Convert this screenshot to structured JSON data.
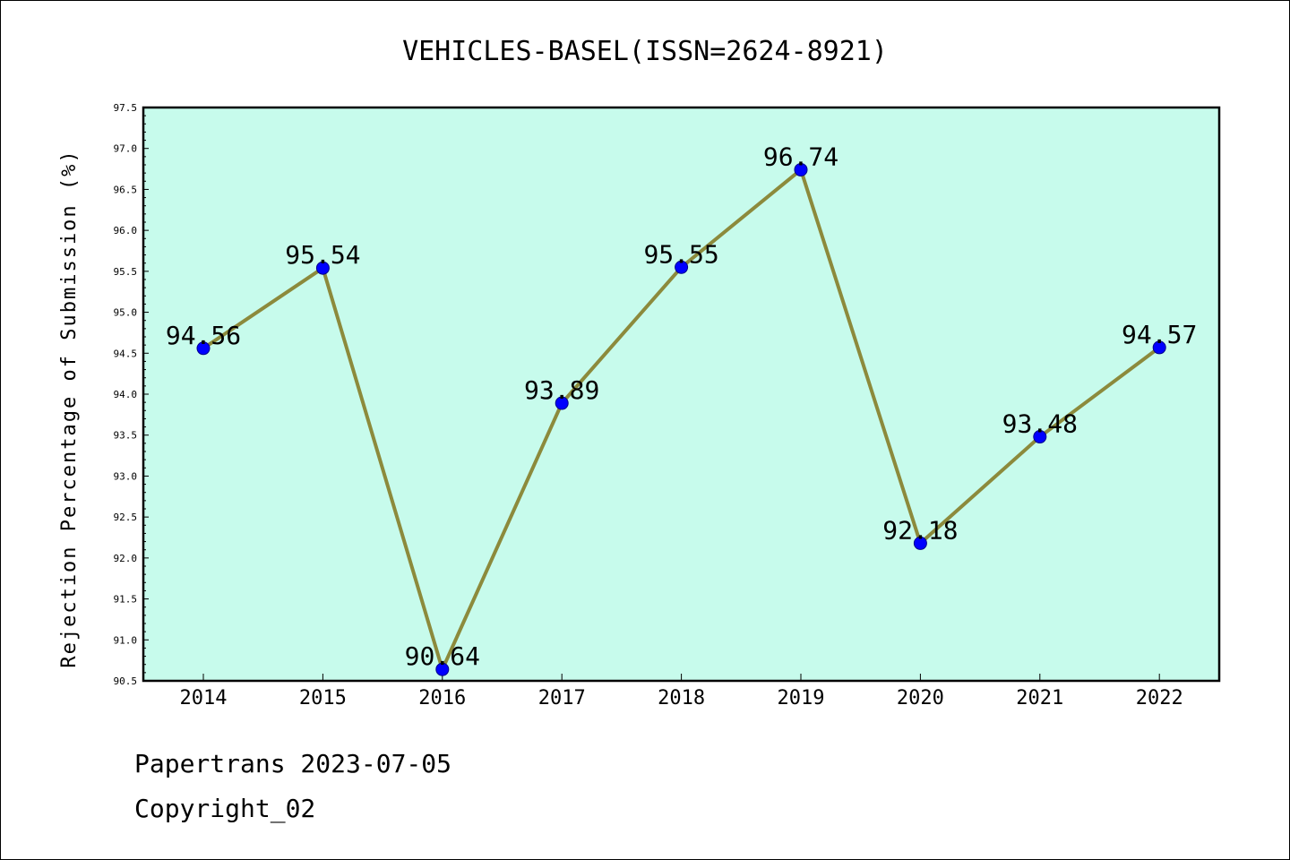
{
  "chart_data": {
    "type": "line",
    "title": "VEHICLES-BASEL(ISSN=2624-8921)",
    "xlabel": "",
    "ylabel": "Rejection Percentage of Submission (%)",
    "categories": [
      "2014",
      "2015",
      "2016",
      "2017",
      "2018",
      "2019",
      "2020",
      "2021",
      "2022"
    ],
    "series": [
      {
        "values": [
          94.56,
          95.54,
          90.64,
          93.89,
          95.55,
          96.74,
          92.18,
          93.48,
          94.57
        ],
        "data_labels": [
          "94.56",
          "95.54",
          "90.64",
          "93.89",
          "95.55",
          "96.74",
          "92.18",
          "93.48",
          "94.57"
        ]
      }
    ],
    "ylim": [
      90.5,
      97.5
    ],
    "yticks": [
      "90.5",
      "91.0",
      "91.5",
      "92.0",
      "92.5",
      "93.0",
      "93.5",
      "94.0",
      "94.5",
      "95.0",
      "95.5",
      "96.0",
      "96.5",
      "97.0",
      "97.5"
    ],
    "grid": false,
    "colors": {
      "plot_background": "#c7fbec",
      "line": "#8c8a3c",
      "marker": "#0000ff"
    }
  },
  "footer": {
    "line1": "Papertrans 2023-07-05",
    "line2": "Copyright_02"
  }
}
